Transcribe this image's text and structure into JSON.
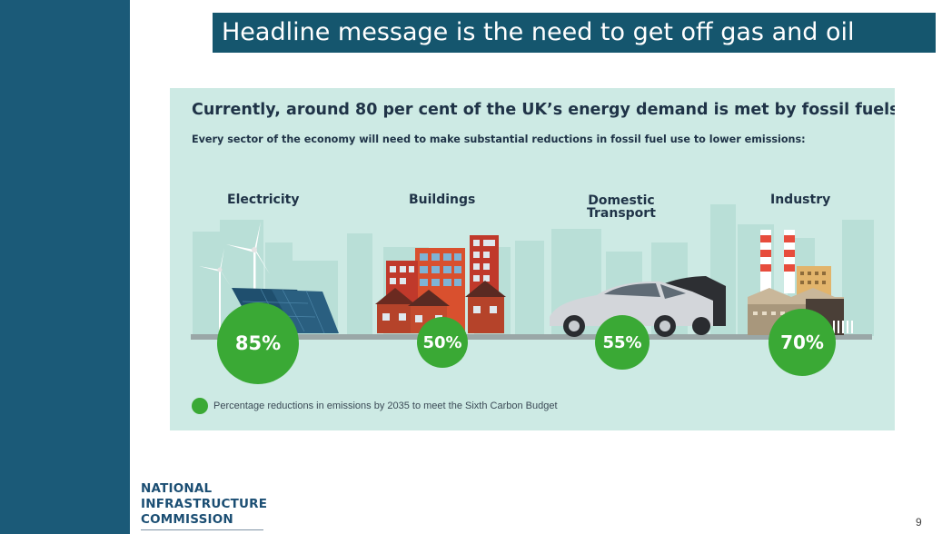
{
  "headline": "Headline message is the need to get off gas and oil",
  "infographic": {
    "title": "Currently, around 80 per cent of the UK’s energy demand is met by fossil fuels",
    "subtitle": "Every sector of the economy will need to make substantial reductions in fossil fuel use to lower emissions:",
    "sectors": [
      {
        "label": "Electricity",
        "value": "85%"
      },
      {
        "label": "Buildings",
        "value": "50%"
      },
      {
        "label_line1": "Domestic",
        "label_line2": "Transport",
        "value": "55%"
      },
      {
        "label": "Industry",
        "value": "70%"
      }
    ],
    "legend": "Percentage reductions in emissions by 2035 to meet the Sixth Carbon Budget",
    "colors": {
      "green": "#3aa935",
      "background": "#cdeae4",
      "title": "#1f3347"
    }
  },
  "logo": {
    "line1": "NATIONAL",
    "line2": "INFRASTRUCTURE",
    "line3": "COMMISSION"
  },
  "page_number": "9",
  "colors": {
    "sidebar": "#1b5a78",
    "headline_bg": "#15566e"
  }
}
